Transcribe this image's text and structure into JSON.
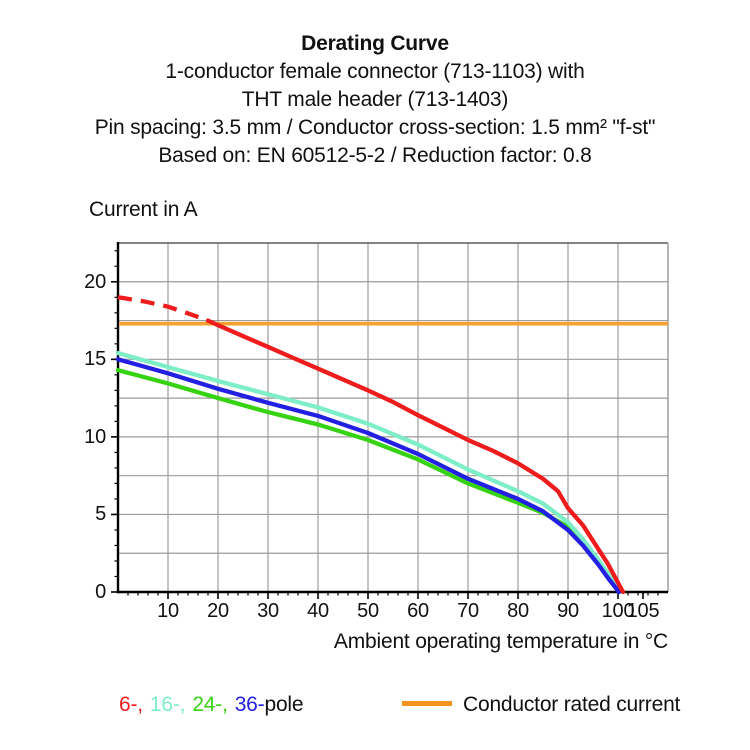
{
  "header": {
    "title": "Derating Curve",
    "lines": [
      "1-conductor female connector (713-1103) with",
      "THT male header (713-1403)",
      "Pin spacing: 3.5 mm / Conductor cross-section: 1.5 mm² \"f-st\"",
      "Based on: EN 60512-5-2 / Reduction factor: 0.8"
    ]
  },
  "axes": {
    "y_title": "Current in A",
    "x_title": "Ambient operating temperature in °C"
  },
  "legend": {
    "pole_items": [
      {
        "label": "6-,",
        "color": "#ee1c1c"
      },
      {
        "label": "16-,",
        "color": "#7deec6"
      },
      {
        "label": "24-,",
        "color": "#36d313"
      },
      {
        "label": "36-",
        "color": "#2420e3"
      }
    ],
    "pole_suffix": "pole",
    "rated_line_label": "Conductor rated current",
    "rated_line_color": "#f5931f"
  },
  "chart_data": {
    "type": "line",
    "title": "Derating Curve",
    "xlabel": "Ambient operating temperature in °C",
    "ylabel": "Current in A",
    "xlim": [
      0,
      110
    ],
    "ylim": [
      0,
      22.5
    ],
    "x_grid_step": 10,
    "y_grid_step": 2.5,
    "x_tick_labels": [
      10,
      20,
      30,
      40,
      50,
      60,
      70,
      80,
      90,
      100,
      105
    ],
    "x_minor_tick_step": 2,
    "y_tick_labels": [
      0,
      5,
      10,
      15,
      20
    ],
    "y_minor_tick_step": 1,
    "grid_color": "#9c9c9c",
    "legend_position": "bottom",
    "reference_line": {
      "label": "Conductor rated current",
      "y": 17.3,
      "color": "#f6a02d"
    },
    "series": [
      {
        "name": "24-pole",
        "color": "#36d313",
        "segments": [
          {
            "style": "solid",
            "points": [
              [
                0,
                14.3
              ],
              [
                10,
                13.45
              ],
              [
                20,
                12.5
              ],
              [
                30,
                11.6
              ],
              [
                40,
                10.8
              ],
              [
                50,
                9.8
              ],
              [
                60,
                8.55
              ],
              [
                70,
                7.0
              ],
              [
                80,
                5.75
              ],
              [
                85,
                5.1
              ],
              [
                90,
                4.2
              ],
              [
                93,
                3.2
              ],
              [
                96,
                2.0
              ],
              [
                98,
                1.1
              ],
              [
                100.2,
                0
              ]
            ]
          }
        ]
      },
      {
        "name": "16-pole",
        "color": "#7deec6",
        "segments": [
          {
            "style": "solid",
            "points": [
              [
                0,
                15.4
              ],
              [
                10,
                14.5
              ],
              [
                20,
                13.6
              ],
              [
                30,
                12.75
              ],
              [
                40,
                11.9
              ],
              [
                50,
                10.85
              ],
              [
                60,
                9.5
              ],
              [
                70,
                7.9
              ],
              [
                80,
                6.5
              ],
              [
                85,
                5.7
              ],
              [
                90,
                4.5
              ],
              [
                93,
                3.4
              ],
              [
                96,
                2.1
              ],
              [
                98,
                1.2
              ],
              [
                100.3,
                0
              ]
            ]
          }
        ]
      },
      {
        "name": "36-pole",
        "color": "#2420e3",
        "segments": [
          {
            "style": "solid",
            "points": [
              [
                0,
                15.0
              ],
              [
                10,
                14.1
              ],
              [
                20,
                13.1
              ],
              [
                30,
                12.2
              ],
              [
                40,
                11.35
              ],
              [
                50,
                10.25
              ],
              [
                60,
                8.9
              ],
              [
                70,
                7.3
              ],
              [
                80,
                6.0
              ],
              [
                85,
                5.2
              ],
              [
                90,
                4.0
              ],
              [
                93,
                3.0
              ],
              [
                96,
                1.8
              ],
              [
                98,
                0.9
              ],
              [
                100.2,
                0
              ]
            ]
          }
        ]
      },
      {
        "name": "6-pole",
        "color": "#ee1c1c",
        "segments": [
          {
            "style": "dashed",
            "points": [
              [
                0,
                19.0
              ],
              [
                5,
                18.75
              ],
              [
                10,
                18.4
              ],
              [
                15,
                17.85
              ],
              [
                18,
                17.5
              ]
            ]
          },
          {
            "style": "solid",
            "points": [
              [
                18,
                17.5
              ],
              [
                20,
                17.2
              ],
              [
                25,
                16.5
              ],
              [
                30,
                15.8
              ],
              [
                35,
                15.1
              ],
              [
                40,
                14.4
              ],
              [
                45,
                13.7
              ],
              [
                50,
                13.0
              ],
              [
                55,
                12.25
              ],
              [
                60,
                11.4
              ],
              [
                65,
                10.6
              ],
              [
                70,
                9.8
              ],
              [
                75,
                9.1
              ],
              [
                80,
                8.3
              ],
              [
                85,
                7.3
              ],
              [
                88,
                6.5
              ],
              [
                90,
                5.4
              ],
              [
                93,
                4.3
              ],
              [
                96,
                2.8
              ],
              [
                98,
                1.8
              ],
              [
                100,
                0.6
              ],
              [
                101,
                0
              ]
            ]
          }
        ]
      }
    ]
  }
}
